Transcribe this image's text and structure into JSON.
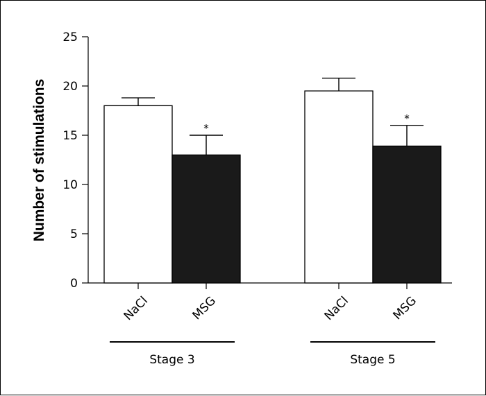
{
  "chart_data": {
    "type": "bar",
    "title": "",
    "xlabel": "",
    "ylabel": "Number of stimulations",
    "ylim": [
      0,
      25
    ],
    "yticks": [
      0,
      5,
      10,
      15,
      20,
      25
    ],
    "groups": [
      {
        "label": "Stage 3",
        "bars": [
          {
            "category": "NaCl",
            "value": 18.0,
            "error": 0.8,
            "color": "#ffffff",
            "annotation": ""
          },
          {
            "category": "MSG",
            "value": 13.0,
            "error": 2.0,
            "color": "#1a1a1a",
            "annotation": "*"
          }
        ]
      },
      {
        "label": "Stage 5",
        "bars": [
          {
            "category": "NaCl",
            "value": 19.5,
            "error": 1.3,
            "color": "#ffffff",
            "annotation": ""
          },
          {
            "category": "MSG",
            "value": 13.9,
            "error": 2.1,
            "color": "#1a1a1a",
            "annotation": "*"
          }
        ]
      }
    ],
    "grid": false,
    "legend": "none"
  }
}
